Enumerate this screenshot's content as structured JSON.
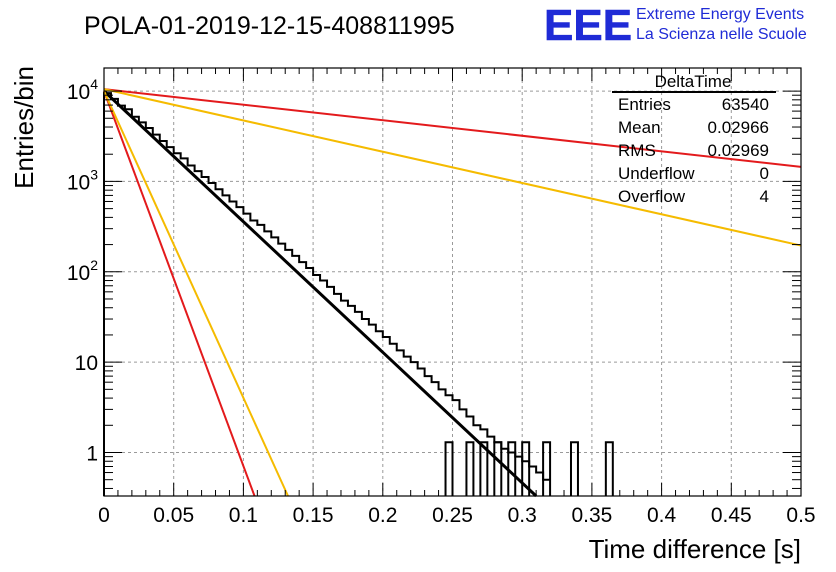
{
  "chart_data": {
    "type": "histogram",
    "title": "POLA-01-2019-12-15-408811995",
    "xlabel": "Time difference [s]",
    "ylabel": "Entries/bin",
    "xlim": [
      0,
      0.5
    ],
    "ylim": [
      0.33,
      18000
    ],
    "yscale": "log",
    "grid": true,
    "x_tick_labels": [
      "0",
      "0.05",
      "0.1",
      "0.15",
      "0.2",
      "0.25",
      "0.3",
      "0.35",
      "0.4",
      "0.45",
      "0.5"
    ],
    "y_tick_labels": [
      {
        "base": "10",
        "exp": "4",
        "value": 10000
      },
      {
        "base": "10",
        "exp": "3",
        "value": 1000
      },
      {
        "base": "10",
        "exp": "2",
        "value": 100
      },
      {
        "base": "10",
        "exp": "",
        "value": 10
      },
      {
        "base": "1",
        "exp": "",
        "value": 1
      }
    ],
    "histogram": {
      "bin_width": 0.005,
      "color": "#000000",
      "counts": [
        9500,
        8200,
        6900,
        6300,
        5200,
        4500,
        3900,
        3300,
        2800,
        2400,
        2050,
        1800,
        1500,
        1300,
        1120,
        960,
        820,
        700,
        600,
        520,
        440,
        370,
        330,
        280,
        240,
        205,
        175,
        150,
        128,
        110,
        92,
        80,
        68,
        57,
        48,
        42,
        36,
        30,
        26,
        22,
        19,
        16,
        13.5,
        11.5,
        10,
        8.5,
        7,
        6,
        5,
        4.3,
        3.8,
        3,
        2.5,
        2,
        1.8,
        1.5,
        1.3,
        1.1,
        1,
        0.9,
        0.8,
        0.7,
        0.6,
        0.5
      ]
    },
    "series": [
      {
        "x": [
          0,
          0.31
        ],
        "y": [
          10000,
          0.33
        ],
        "color": "#000000",
        "style": "fit"
      },
      {
        "x": [
          0,
          0.5
        ],
        "y": [
          10500,
          1450
        ],
        "color": "#e31a1c"
      },
      {
        "x": [
          0,
          0.5
        ],
        "y": [
          10500,
          195
        ],
        "color": "#f5bb00"
      },
      {
        "x": [
          0,
          0.108
        ],
        "y": [
          10000,
          0.33
        ],
        "color": "#e31a1c"
      },
      {
        "x": [
          0,
          0.132
        ],
        "y": [
          10000,
          0.33
        ],
        "color": "#f5bb00"
      }
    ],
    "stats_box": {
      "title": "DeltaTime",
      "rows": [
        {
          "label": "Entries",
          "value": "63540"
        },
        {
          "label": "Mean",
          "value": "0.02966"
        },
        {
          "label": "RMS",
          "value": "0.02969"
        },
        {
          "label": "Underflow",
          "value": "0"
        },
        {
          "label": "Overflow",
          "value": "4"
        }
      ]
    }
  },
  "logo": {
    "mark": "EEE",
    "line1": "Extreme Energy Events",
    "line2": "La Scienza nelle Scuole",
    "color": "#1f2bd6"
  }
}
